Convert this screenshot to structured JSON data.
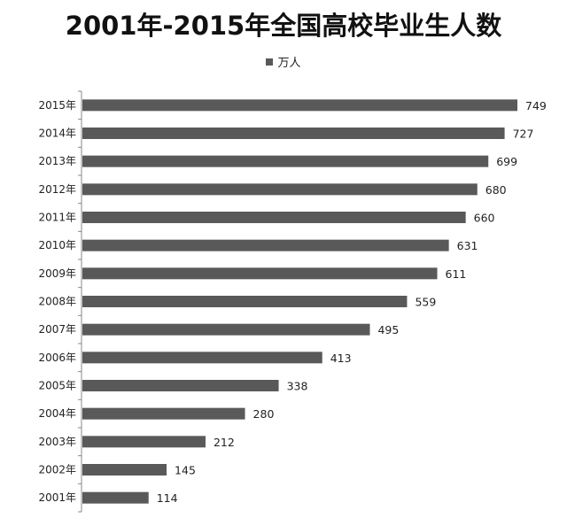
{
  "chart_data": {
    "type": "bar",
    "orientation": "horizontal",
    "title": "2001年-2015年全国高校毕业生人数",
    "categories": [
      "2015年",
      "2014年",
      "2013年",
      "2012年",
      "2011年",
      "2010年",
      "2009年",
      "2008年",
      "2007年",
      "2006年",
      "2005年",
      "2004年",
      "2003年",
      "2002年",
      "2001年"
    ],
    "series": [
      {
        "name": "万人",
        "values": [
          749,
          727,
          699,
          680,
          660,
          631,
          611,
          559,
          495,
          413,
          338,
          280,
          212,
          145,
          114
        ]
      }
    ],
    "xlim": [
      0,
      760
    ],
    "legend_position": "top",
    "grid": false,
    "data_labels": true,
    "bar_color": "#595959"
  }
}
